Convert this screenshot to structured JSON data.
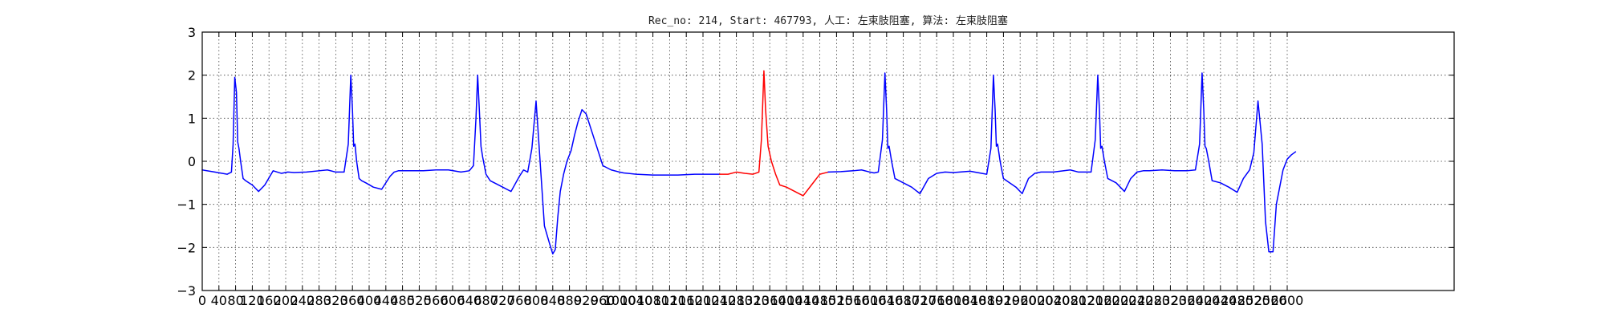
{
  "chart_data": {
    "type": "line",
    "title": "Rec_no: 214, Start: 467793, 人工: 左束肢阻塞, 算法: 左束肢阻塞",
    "xlabel": "",
    "ylabel": "",
    "xlim": [
      0,
      3000
    ],
    "ylim": [
      -3,
      3
    ],
    "grid": true,
    "x_ticks": [
      0,
      40,
      80,
      120,
      160,
      200,
      240,
      280,
      320,
      360,
      400,
      440,
      480,
      520,
      560,
      600,
      640,
      680,
      720,
      760,
      800,
      840,
      880,
      920,
      960,
      1000,
      1040,
      1080,
      1120,
      1160,
      1200,
      1240,
      1280,
      1320,
      1360,
      1400,
      1440,
      1480,
      1520,
      1560,
      1600,
      1640,
      1680,
      1720,
      1760,
      1800,
      1840,
      1880,
      1920,
      1960,
      2000,
      2040,
      2080,
      2120,
      2160,
      2200,
      2240,
      2280,
      2320,
      2360,
      2400,
      2440,
      2480,
      2520,
      2560,
      2600
    ],
    "y_ticks": [
      -3,
      -2,
      -1,
      0,
      1,
      2,
      3
    ],
    "series": [
      {
        "color": "#0000ff",
        "x": [
          0,
          30,
          60,
          70,
          74,
          78,
          82,
          85,
          88,
          92,
          98,
          104,
          112,
          120,
          135,
          150,
          165,
          170,
          180,
          190,
          205,
          220,
          250,
          280,
          300,
          320,
          340,
          350,
          356,
          360,
          363,
          366,
          370,
          376,
          382,
          392,
          410,
          430,
          450,
          460,
          470,
          480,
          490,
          505,
          530,
          560,
          590,
          620,
          640,
          650,
          656,
          660,
          664,
          668,
          672,
          680,
          690,
          700,
          720,
          740,
          760,
          770,
          780,
          790,
          800,
          820,
          832,
          840,
          846,
          852,
          858,
          866,
          874,
          884,
          892,
          900,
          910,
          920,
          940,
          960,
          980,
          1000,
          1010,
          1020,
          1040,
          1060,
          1080,
          1100,
          1120,
          1140,
          1160,
          1180,
          1200,
          1220,
          1240
        ],
        "y": [
          -0.2,
          -0.25,
          -0.3,
          -0.25,
          0.4,
          1.95,
          1.6,
          0.45,
          0.3,
          0.0,
          -0.4,
          -0.45,
          -0.5,
          -0.55,
          -0.7,
          -0.55,
          -0.3,
          -0.22,
          -0.25,
          -0.28,
          -0.25,
          -0.26,
          -0.25,
          -0.22,
          -0.2,
          -0.25,
          -0.25,
          0.4,
          2.0,
          1.2,
          0.35,
          0.4,
          0.0,
          -0.4,
          -0.45,
          -0.5,
          -0.6,
          -0.65,
          -0.35,
          -0.25,
          -0.22,
          -0.22,
          -0.22,
          -0.22,
          -0.22,
          -0.2,
          -0.2,
          -0.25,
          -0.22,
          -0.1,
          1.0,
          2.0,
          1.2,
          0.35,
          0.1,
          -0.3,
          -0.45,
          -0.5,
          -0.6,
          -0.7,
          -0.35,
          -0.2,
          -0.25,
          0.3,
          1.4,
          -1.5,
          -1.9,
          -2.15,
          -2.05,
          -1.3,
          -0.7,
          -0.3,
          0.0,
          0.25,
          0.6,
          0.9,
          1.2,
          1.1,
          0.5,
          -0.1,
          -0.2,
          -0.25,
          -0.27,
          -0.28,
          -0.3,
          -0.31,
          -0.32,
          -0.32,
          -0.32,
          -0.32,
          -0.31,
          -0.3,
          -0.3,
          -0.3,
          -0.3
        ]
      },
      {
        "color": "#ff0000",
        "x": [
          1240,
          1260,
          1280,
          1300,
          1320,
          1334,
          1340,
          1346,
          1350,
          1356,
          1364,
          1374,
          1384,
          1400,
          1420,
          1440,
          1460,
          1480,
          1500
        ],
        "y": [
          -0.3,
          -0.3,
          -0.25,
          -0.28,
          -0.3,
          -0.25,
          0.5,
          2.1,
          1.2,
          0.35,
          0.0,
          -0.3,
          -0.55,
          -0.6,
          -0.7,
          -0.8,
          -0.55,
          -0.3,
          -0.25
        ]
      },
      {
        "color": "#0000ff",
        "x": [
          1500,
          1530,
          1560,
          1580,
          1600,
          1610,
          1620,
          1630,
          1636,
          1640,
          1643,
          1646,
          1652,
          1660,
          1680,
          1700,
          1720,
          1740,
          1760,
          1780,
          1800,
          1840,
          1880,
          1890,
          1896,
          1900,
          1903,
          1906,
          1912,
          1920,
          1935,
          1950,
          1965,
          1980,
          1995,
          2010,
          2040,
          2080,
          2100,
          2130,
          2140,
          2146,
          2150,
          2153,
          2156,
          2162,
          2170,
          2190,
          2210,
          2225,
          2240,
          2255,
          2270,
          2300,
          2330,
          2360,
          2380,
          2390,
          2396,
          2400,
          2403,
          2406,
          2412,
          2420,
          2440,
          2460,
          2480,
          2495,
          2510,
          2520,
          2530,
          2540,
          2548,
          2556,
          2566,
          2574,
          2582,
          2590,
          2600,
          2610,
          2620
        ],
        "y": [
          -0.25,
          -0.24,
          -0.22,
          -0.2,
          -0.25,
          -0.27,
          -0.25,
          0.5,
          2.05,
          1.2,
          0.3,
          0.35,
          0.0,
          -0.4,
          -0.5,
          -0.6,
          -0.75,
          -0.4,
          -0.28,
          -0.25,
          -0.26,
          -0.23,
          -0.3,
          0.3,
          2.0,
          1.2,
          0.35,
          0.4,
          0.0,
          -0.4,
          -0.5,
          -0.6,
          -0.75,
          -0.4,
          -0.28,
          -0.25,
          -0.25,
          -0.2,
          -0.25,
          -0.25,
          0.5,
          2.0,
          1.2,
          0.3,
          0.35,
          0.0,
          -0.4,
          -0.5,
          -0.7,
          -0.4,
          -0.25,
          -0.22,
          -0.22,
          -0.2,
          -0.22,
          -0.22,
          -0.2,
          0.4,
          2.05,
          1.2,
          0.35,
          0.3,
          0.0,
          -0.45,
          -0.5,
          -0.6,
          -0.72,
          -0.4,
          -0.2,
          0.2,
          1.4,
          0.4,
          -1.4,
          -2.1,
          -2.1,
          -1.0,
          -0.6,
          -0.2,
          0.05,
          0.15,
          0.22
        ]
      }
    ]
  }
}
